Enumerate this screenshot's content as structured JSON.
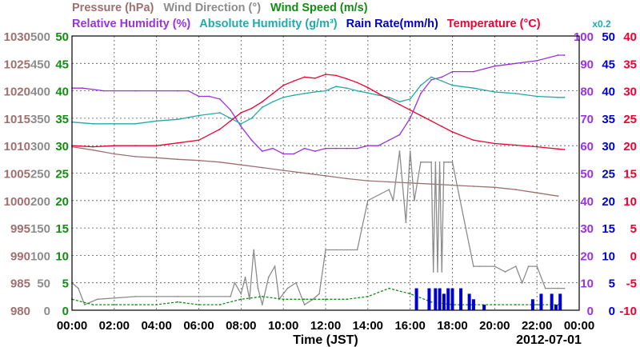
{
  "header": {
    "row1": [
      {
        "text": "Pressure (hPa)",
        "color": "#9e7070"
      },
      {
        "text": "Wind Direction (°)",
        "color": "#8c8c8c"
      },
      {
        "text": "Wind Speed (m/s)",
        "color": "#128c12"
      }
    ],
    "row2": [
      {
        "text": "Relative Humidity (%)",
        "color": "#9933dd"
      },
      {
        "text": "Absolute Humidity (g/m³)",
        "color": "#22aaaa"
      },
      {
        "text": "Rain Rate(mm/h)",
        "color": "#0000cc"
      },
      {
        "text": "Temperature (°C)",
        "color": "#ee0033"
      }
    ],
    "rain_scale_note": "x0.2"
  },
  "chart_data": {
    "type": "line",
    "xlabel": "Time (JST)",
    "date_label": "2012-07-01",
    "x_ticks": [
      "00:00",
      "02:00",
      "04:00",
      "06:00",
      "08:00",
      "10:00",
      "12:00",
      "14:00",
      "16:00",
      "18:00",
      "20:00",
      "22:00",
      "00:00"
    ],
    "xlim_hours": [
      0,
      24
    ],
    "grid": true,
    "axes": {
      "pressure": {
        "color": "#9e7070",
        "ticks": [
          "980",
          "985",
          "990",
          "995",
          "1000",
          "1005",
          "1010",
          "1015",
          "1020",
          "1025",
          "1030"
        ],
        "ylim": [
          980,
          1030
        ]
      },
      "wind_direction": {
        "color": "#8c8c8c",
        "ticks": [
          "0",
          "50",
          "100",
          "150",
          "200",
          "250",
          "300",
          "350",
          "400",
          "450",
          "500"
        ],
        "ylim": [
          0,
          500
        ]
      },
      "wind_speed": {
        "color": "#128c12",
        "ticks": [
          "0",
          "5",
          "10",
          "15",
          "20",
          "25",
          "30",
          "35",
          "40",
          "45",
          "50"
        ],
        "ylim": [
          0,
          50
        ]
      },
      "relative_humidity": {
        "color": "#9933dd",
        "ticks": [
          "0",
          "10",
          "20",
          "30",
          "40",
          "50",
          "60",
          "70",
          "80",
          "90",
          "100"
        ],
        "ylim": [
          0,
          100
        ]
      },
      "rain_rate": {
        "color": "#0000cc",
        "ticks": [
          "0",
          "5",
          "10",
          "15",
          "20",
          "25",
          "30",
          "35",
          "40",
          "45",
          "50"
        ],
        "ylim": [
          0,
          50
        ]
      },
      "temperature": {
        "color": "#ee0033",
        "ticks": [
          "-10",
          "-5",
          "0",
          "5",
          "10",
          "15",
          "20",
          "25",
          "30",
          "35",
          "40"
        ],
        "ylim": [
          -10,
          40
        ]
      }
    },
    "series": [
      {
        "name": "Pressure (hPa)",
        "axis": "pressure",
        "color": "#9e7070",
        "x": [
          0,
          1,
          2,
          3,
          4,
          5,
          6,
          7,
          8,
          9,
          10,
          11,
          12,
          13,
          14,
          15,
          16,
          17,
          18,
          19,
          20,
          21,
          22,
          23
        ],
        "y": [
          1009.8,
          1009.2,
          1008.5,
          1008.0,
          1007.8,
          1007.5,
          1007.3,
          1007.0,
          1006.5,
          1006.0,
          1005.5,
          1005.0,
          1004.5,
          1004.0,
          1003.6,
          1003.4,
          1003.2,
          1003.0,
          1002.8,
          1002.6,
          1002.4,
          1002.0,
          1001.4,
          1000.8
        ]
      },
      {
        "name": "Wind Direction (°)",
        "axis": "wind_direction",
        "color": "#8c8c8c",
        "x": [
          0,
          0.3,
          0.6,
          1.2,
          3,
          5,
          7.5,
          7.7,
          8,
          8.2,
          8.4,
          8.6,
          8.8,
          9,
          9.3,
          9.6,
          9.8,
          10.2,
          10.6,
          11,
          11.4,
          11.7,
          12,
          13.5,
          14,
          15,
          15.2,
          15.5,
          15.8,
          16,
          16.2,
          16.5,
          17,
          17.1,
          17.2,
          17.3,
          17.4,
          17.5,
          17.6,
          17.8,
          18,
          19,
          19.3,
          20,
          20.5,
          21,
          21.3,
          21.6,
          22,
          22.4,
          23,
          23.3
        ],
        "y": [
          50,
          40,
          10,
          20,
          25,
          25,
          25,
          50,
          30,
          60,
          20,
          110,
          40,
          10,
          60,
          80,
          20,
          40,
          50,
          10,
          20,
          30,
          110,
          110,
          200,
          220,
          200,
          290,
          160,
          290,
          200,
          270,
          270,
          70,
          270,
          70,
          270,
          70,
          270,
          270,
          270,
          80,
          80,
          80,
          70,
          80,
          50,
          80,
          80,
          40,
          40,
          40
        ]
      },
      {
        "name": "Wind Speed (m/s)",
        "axis": "wind_speed",
        "color": "#128c12",
        "x": [
          0,
          1,
          2,
          3,
          4,
          5,
          6,
          7,
          8,
          9,
          10,
          11,
          12,
          13,
          14,
          15,
          16,
          17,
          18,
          19,
          20,
          21,
          22,
          23
        ],
        "y": [
          2.0,
          1.0,
          1.0,
          1.0,
          1.0,
          1.5,
          1.0,
          1.0,
          2.0,
          2.5,
          2.0,
          2.0,
          2.0,
          2.0,
          2.5,
          4.0,
          3.0,
          1.5,
          1.0,
          1.0,
          1.0,
          1.0,
          1.0,
          1.0
        ]
      },
      {
        "name": "Relative Humidity (%)",
        "axis": "relative_humidity",
        "color": "#9933dd",
        "x": [
          0,
          0.5,
          1.5,
          2,
          3,
          4,
          5,
          5.5,
          6,
          6.5,
          7,
          7.5,
          8,
          8.5,
          9,
          9.5,
          10,
          10.5,
          11,
          11.5,
          12,
          12.5,
          13,
          13.5,
          14,
          14.5,
          15,
          15.5,
          16,
          16.5,
          17,
          17.5,
          18,
          19,
          20,
          21,
          22,
          23,
          23.3
        ],
        "y": [
          81,
          81,
          80,
          80,
          80,
          80,
          80,
          80,
          78,
          78,
          77,
          73,
          67,
          62,
          58,
          59,
          57,
          57,
          59,
          58,
          59,
          59,
          59,
          59,
          60,
          60,
          62,
          64,
          70,
          79,
          84,
          85,
          87,
          87,
          89,
          90,
          91,
          93,
          93
        ]
      },
      {
        "name": "Absolute Humidity (g/m³)",
        "axis": "wind_direction",
        "color": "#22aaaa",
        "x": [
          0,
          1,
          2,
          3,
          4,
          5,
          6,
          7,
          7.5,
          8,
          8.5,
          9,
          9.5,
          10,
          10.5,
          11,
          11.5,
          12,
          12.5,
          13,
          13.5,
          14,
          14.5,
          15,
          15.5,
          16,
          16.5,
          17,
          17.5,
          18,
          19,
          20,
          21,
          22,
          23,
          23.3
        ],
        "y": [
          343,
          340,
          340,
          340,
          345,
          348,
          355,
          360,
          350,
          340,
          350,
          370,
          380,
          388,
          392,
          395,
          398,
          400,
          408,
          405,
          400,
          396,
          392,
          388,
          380,
          385,
          410,
          425,
          418,
          410,
          405,
          398,
          395,
          390,
          388,
          388
        ]
      },
      {
        "name": "Temperature (°C)",
        "axis": "temperature",
        "color": "#ee0033",
        "x": [
          0,
          1,
          2,
          3,
          4,
          5,
          6,
          7,
          7.5,
          8,
          8.5,
          9,
          9.5,
          10,
          10.5,
          11,
          11.5,
          12,
          12.5,
          13,
          13.5,
          14,
          14.5,
          15,
          15.5,
          16,
          16.5,
          17,
          17.5,
          18,
          19,
          20,
          21,
          22,
          23,
          23.3
        ],
        "y": [
          20,
          19.8,
          20,
          20,
          20,
          20.5,
          21,
          23,
          24.5,
          26,
          26.8,
          28,
          29.5,
          31,
          31.8,
          32.5,
          32.3,
          33,
          32.8,
          32.2,
          31.5,
          30.6,
          29.5,
          28.5,
          27.5,
          26.5,
          25.5,
          24.5,
          23.5,
          22.5,
          21.0,
          20.4,
          20.1,
          19.8,
          19.4,
          19.3
        ]
      },
      {
        "name": "Rain Rate(mm/h)",
        "axis": "rain_rate",
        "color": "#0000cc",
        "x": [
          16.3,
          16.6,
          16.9,
          17.0,
          17.2,
          17.4,
          17.6,
          17.8,
          18.0,
          18.2,
          18.4,
          18.6,
          18.8,
          19.0,
          19.2,
          19.5,
          21.8,
          22.0,
          22.2,
          22.5,
          22.7,
          22.9,
          23.1,
          23.3
        ],
        "y": [
          4,
          0,
          4,
          0,
          4,
          4,
          3,
          4,
          4,
          0,
          4,
          0,
          3,
          2,
          0,
          1,
          2,
          0,
          3,
          0,
          3,
          1,
          3,
          0
        ]
      }
    ]
  }
}
